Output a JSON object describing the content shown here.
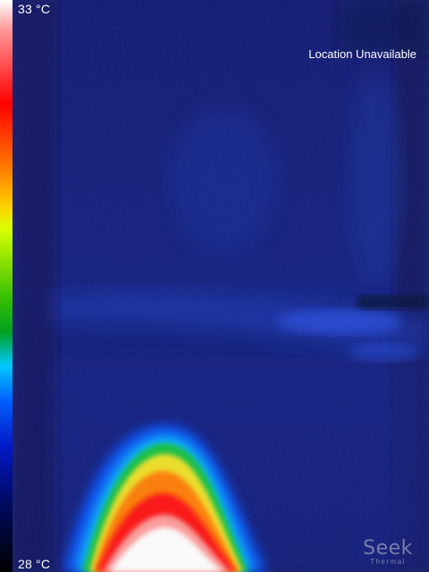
{
  "scale": {
    "max_label": "33 °C",
    "min_label": "28 °C",
    "palette": [
      "#ffffff",
      "#ff0000",
      "#ff6a00",
      "#ffd000",
      "#38c000",
      "#00c8ff",
      "#0018c8",
      "#000000"
    ]
  },
  "status": {
    "location": "Location Unavailable"
  },
  "brand": {
    "name": "Seek",
    "subtitle": "Thermal"
  },
  "colors": {
    "background": "#0a1470",
    "hot": "#ffffff",
    "cold": "#000a40"
  }
}
